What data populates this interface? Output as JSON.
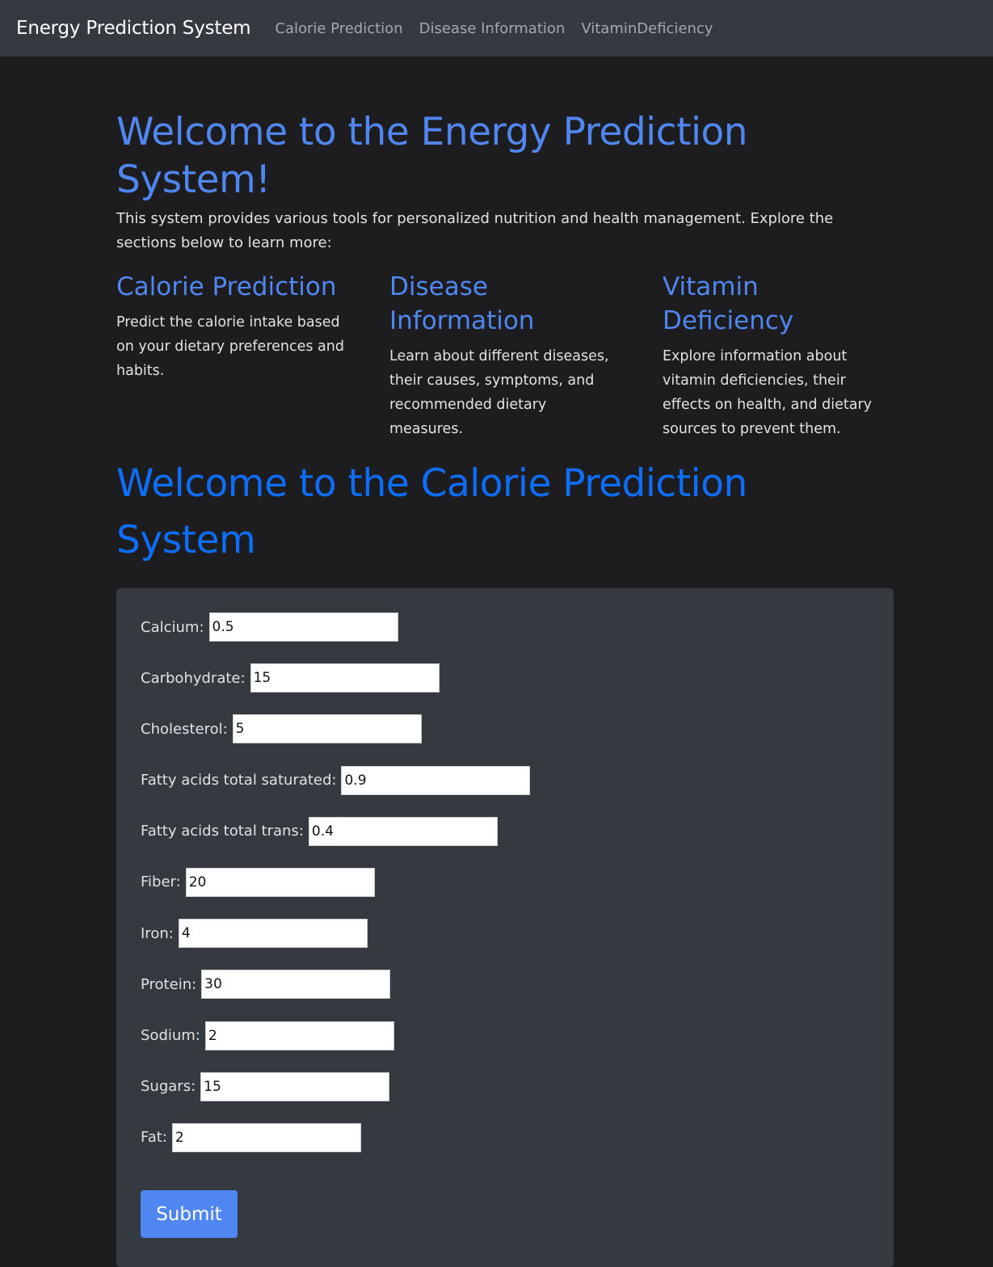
{
  "navbar": {
    "brand": "Energy Prediction System",
    "links": [
      "Calorie Prediction",
      "Disease Information",
      "VitaminDeficiency"
    ]
  },
  "welcome": {
    "title": "Welcome to the Energy Prediction System!",
    "intro": "This system provides various tools for personalized nutrition and health management. Explore the sections below to learn more:"
  },
  "sections": [
    {
      "title": "Calorie Prediction",
      "text": "Predict the calorie intake based on your dietary preferences and habits."
    },
    {
      "title": "Disease Information",
      "text": "Learn about different diseases, their causes, symptoms, and recommended dietary measures."
    },
    {
      "title": "Vitamin Deficiency",
      "text": "Explore information about vitamin deficiencies, their effects on health, and dietary sources to prevent them."
    }
  ],
  "calorie": {
    "title": "Welcome to the Calorie Prediction System"
  },
  "form": {
    "fields": [
      {
        "label": "Calcium:",
        "value": "0.5"
      },
      {
        "label": "Carbohydrate:",
        "value": "15"
      },
      {
        "label": "Cholesterol:",
        "value": "5"
      },
      {
        "label": "Fatty acids total saturated:",
        "value": "0.9"
      },
      {
        "label": "Fatty acids total trans:",
        "value": "0.4"
      },
      {
        "label": "Fiber:",
        "value": "20"
      },
      {
        "label": "Iron:",
        "value": "4"
      },
      {
        "label": "Protein:",
        "value": "30"
      },
      {
        "label": "Sodium:",
        "value": "2"
      },
      {
        "label": "Sugars:",
        "value": "15"
      },
      {
        "label": "Fat:",
        "value": "2"
      }
    ],
    "submit_label": "Submit"
  }
}
